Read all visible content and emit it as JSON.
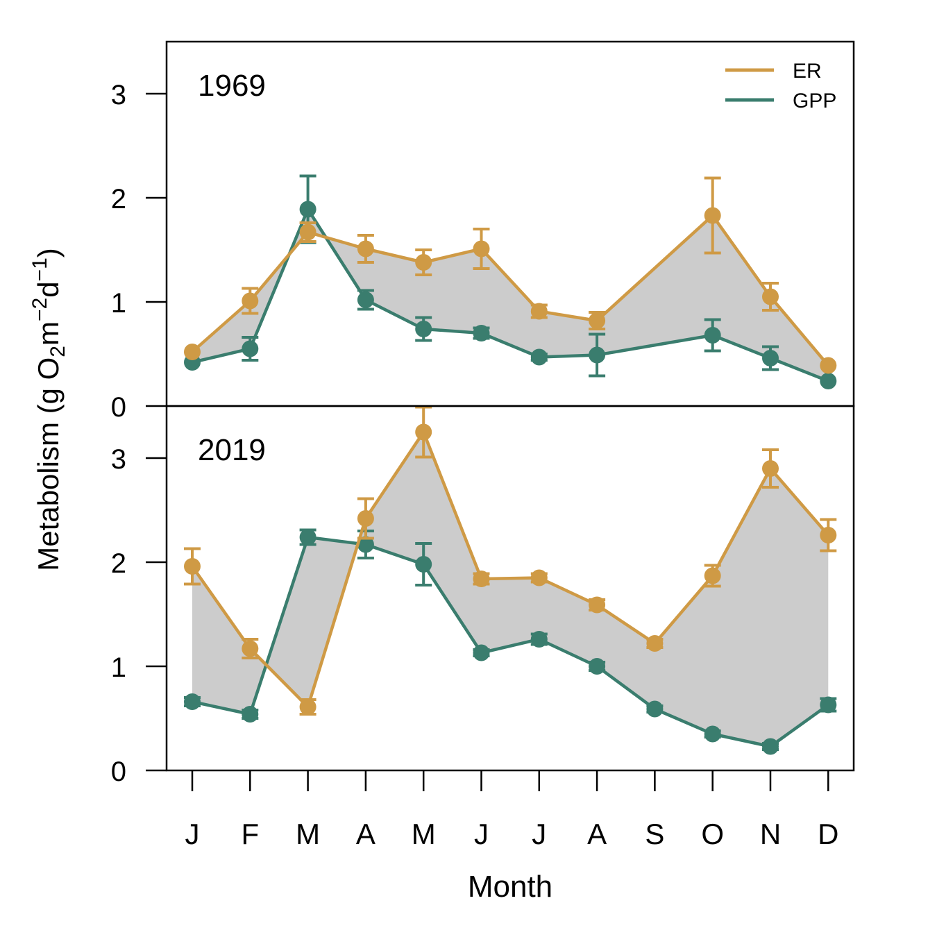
{
  "chart_data": {
    "type": "line",
    "xlabel": "Month",
    "ylabel": "Metabolism (g O",
    "ylabel_parts": {
      "sub_o2": "2",
      "m_unit": "m",
      "exp_m": "−2",
      "d_unit": "d",
      "exp_d": "−1",
      "close": ")"
    },
    "categories": [
      "J",
      "F",
      "M",
      "A",
      "M",
      "J",
      "J",
      "A",
      "S",
      "O",
      "N",
      "D"
    ],
    "legend": {
      "placement": "top-right",
      "items": [
        "ER",
        "GPP"
      ]
    },
    "colors": {
      "ER": "#CF9A45",
      "GPP": "#3A7D6E",
      "fill": "#CCCCCC"
    },
    "panels": [
      {
        "label": "1969",
        "ylim": [
          0,
          3.5
        ],
        "yticks": [
          "0",
          "1",
          "2",
          "3"
        ],
        "series": [
          {
            "name": "ER",
            "values": [
              0.52,
              1.01,
              1.67,
              1.51,
              1.38,
              1.51,
              0.91,
              0.82,
              null,
              1.83,
              1.05,
              0.39
            ],
            "err": [
              0.0,
              0.12,
              0.09,
              0.13,
              0.12,
              0.19,
              0.06,
              0.08,
              null,
              0.36,
              0.13,
              0.0
            ]
          },
          {
            "name": "GPP",
            "values": [
              0.42,
              0.55,
              1.89,
              1.02,
              0.74,
              0.7,
              0.47,
              0.49,
              null,
              0.68,
              0.46,
              0.24
            ],
            "err": [
              0.0,
              0.11,
              0.32,
              0.09,
              0.11,
              0.05,
              0.03,
              0.2,
              null,
              0.15,
              0.11,
              0.0
            ]
          }
        ]
      },
      {
        "label": "2019",
        "ylim": [
          0,
          3.5
        ],
        "yticks": [
          "0",
          "1",
          "2",
          "3"
        ],
        "series": [
          {
            "name": "ER",
            "values": [
              1.96,
              1.17,
              0.61,
              2.42,
              3.25,
              1.84,
              1.85,
              1.59,
              1.22,
              1.87,
              2.9,
              2.26
            ],
            "err": [
              0.17,
              0.09,
              0.07,
              0.19,
              0.24,
              0.05,
              0.04,
              0.05,
              0.04,
              0.1,
              0.18,
              0.15
            ]
          },
          {
            "name": "GPP",
            "values": [
              0.66,
              0.54,
              2.24,
              2.17,
              1.98,
              1.13,
              1.26,
              1.0,
              0.59,
              0.35,
              0.23,
              0.63
            ],
            "err": [
              0.04,
              0.04,
              0.07,
              0.13,
              0.2,
              0.03,
              0.05,
              0.04,
              0.03,
              0.03,
              0.03,
              0.06
            ]
          }
        ]
      }
    ]
  }
}
